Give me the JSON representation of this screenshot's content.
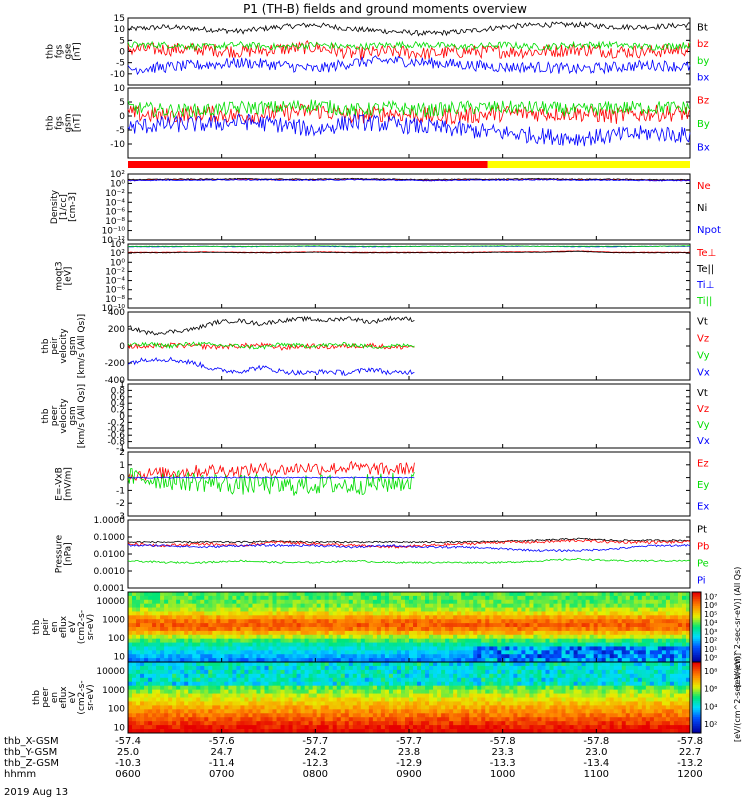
{
  "title": "P1 (TH-B) fields and ground moments overview",
  "date_label": "2019 Aug 13",
  "colors": {
    "black": "#000000",
    "red": "#ff0000",
    "green": "#00dd00",
    "blue": "#0000ff",
    "yellow": "#ffff00"
  },
  "chart_data": [
    {
      "type": "line",
      "id": "fgs_gse",
      "ylabel_lines": [
        "thb",
        "fgs",
        "gse",
        "[nT]"
      ],
      "ylim": [
        -15,
        15
      ],
      "yticks": [
        15,
        10,
        5,
        0,
        -5,
        -10
      ],
      "series": [
        {
          "name": "Bt",
          "color": "#000000",
          "base": [
            10,
            11,
            10,
            9,
            11,
            12,
            10,
            9,
            8,
            9,
            11,
            12,
            12,
            11,
            11,
            12
          ],
          "noise": 1.2
        },
        {
          "name": "bz",
          "color": "#ff0000",
          "base": [
            1,
            1,
            1,
            0,
            1,
            2,
            -1,
            0,
            -1,
            0,
            0,
            0,
            1,
            0,
            0,
            1
          ],
          "noise": 3
        },
        {
          "name": "by",
          "color": "#00dd00",
          "base": [
            3,
            3,
            2,
            3,
            2,
            3,
            2,
            3,
            3,
            2,
            3,
            2,
            3,
            3,
            2,
            3
          ],
          "noise": 1.5
        },
        {
          "name": "bx",
          "color": "#0000ff",
          "base": [
            -8,
            -7,
            -6,
            -5,
            -6,
            -8,
            -5,
            -4,
            -5,
            -6,
            -7,
            -7,
            -8,
            -7,
            -6,
            -7
          ],
          "noise": 2.5
        }
      ]
    },
    {
      "type": "line",
      "id": "fgs_gsm",
      "ylabel_lines": [
        "thb",
        "fgs",
        "gsm",
        "[nT]"
      ],
      "ylim": [
        -15,
        10
      ],
      "yticks": [
        10,
        5,
        0,
        -5,
        -10
      ],
      "series": [
        {
          "name": "Bz",
          "color": "#ff0000",
          "base": [
            1,
            0,
            1,
            0,
            1,
            2,
            0,
            1,
            0,
            0,
            1,
            1,
            1,
            0,
            1,
            1
          ],
          "noise": 3
        },
        {
          "name": "By",
          "color": "#00dd00",
          "base": [
            3,
            2,
            2,
            3,
            3,
            4,
            2,
            3,
            2,
            3,
            3,
            3,
            2,
            3,
            3,
            3
          ],
          "noise": 2.5
        },
        {
          "name": "Bx",
          "color": "#0000ff",
          "base": [
            -4,
            -3,
            -3,
            -2,
            -3,
            -5,
            -2,
            -3,
            -4,
            -5,
            -6,
            -7,
            -8,
            -7,
            -6,
            -7
          ],
          "noise": 3
        }
      ]
    },
    {
      "type": "line",
      "id": "density",
      "log": true,
      "ylabel_lines": [
        "Density",
        "[1/cc]",
        "[cm-3]"
      ],
      "ylim": [
        1e-12,
        100
      ],
      "yticks_labels": [
        "10²",
        "10⁰",
        "10⁻²",
        "10⁻⁴",
        "10⁻⁶",
        "10⁻⁸",
        "10⁻¹⁰",
        "10⁻¹²"
      ],
      "yticks_exp": [
        2,
        0,
        -2,
        -4,
        -6,
        -8,
        -10,
        -12
      ],
      "series": [
        {
          "name": "Ne",
          "color": "#ff0000",
          "base": [
            0.7,
            0.8,
            0.8,
            0.9,
            0.8,
            0.8,
            0.9,
            0.8,
            0.7,
            0.8,
            0.8,
            0.9,
            0.8,
            0.8,
            0.7,
            0.7
          ],
          "noise": 0.1
        },
        {
          "name": "Ni",
          "color": "#000000",
          "base": [
            0.8,
            0.9,
            0.9,
            1,
            0.9,
            0.9,
            1,
            0.9,
            0.8,
            0.9,
            0.9,
            1,
            0.9,
            0.9,
            0.8,
            0.8
          ],
          "noise": 0.1
        },
        {
          "name": "Npot",
          "color": "#0000ff",
          "base": [
            0.6,
            0.7,
            0.7,
            0.8,
            0.7,
            0.7,
            0.8,
            0.7,
            0.6,
            0.7,
            0.7,
            0.8,
            0.7,
            0.7,
            0.6,
            0.6
          ],
          "noise": 0.1
        }
      ]
    },
    {
      "type": "line",
      "id": "temperature",
      "log": true,
      "ylabel_lines": [
        "moqt3",
        "[eV]"
      ],
      "ylim": [
        1e-10,
        10000
      ],
      "yticks_labels": [
        "10⁴",
        "10²",
        "10⁰",
        "10⁻²",
        "10⁻⁴",
        "10⁻⁶",
        "10⁻⁸",
        "10⁻¹⁰"
      ],
      "yticks_exp": [
        4,
        2,
        0,
        -2,
        -4,
        -6,
        -8,
        -10
      ],
      "series": [
        {
          "name": "Te⊥",
          "color": "#ff0000",
          "base": [
            2.2,
            2.2,
            2.3,
            2.2,
            2.2,
            2.3,
            2.2,
            2.2,
            2.2,
            2.2,
            2.3,
            2.3,
            2.5,
            2.2,
            2.2,
            2.2
          ],
          "noise": 0.05
        },
        {
          "name": "Te||",
          "color": "#000000",
          "base": [
            2.1,
            2.1,
            2.2,
            2.1,
            2.1,
            2.2,
            2.1,
            2.1,
            2.1,
            2.1,
            2.2,
            2.2,
            2.4,
            2.1,
            2.1,
            2.1
          ],
          "noise": 0.05
        },
        {
          "name": "Ti⊥",
          "color": "#0000ff",
          "base": [
            3.4,
            3.4,
            3.5,
            3.4,
            3.5,
            3.5,
            3.4,
            3.4,
            3.5,
            3.5,
            3.5,
            3.5,
            3.4,
            3.4,
            3.5,
            3.5
          ],
          "noise": 0.05
        },
        {
          "name": "Ti||",
          "color": "#00dd00",
          "base": [
            3.5,
            3.5,
            3.5,
            3.5,
            3.5,
            3.6,
            3.5,
            3.5,
            3.5,
            3.5,
            3.6,
            3.5,
            3.5,
            3.5,
            3.5,
            3.6
          ],
          "noise": 0.05
        }
      ]
    },
    {
      "type": "line",
      "id": "peir_velocity",
      "xmax": 0.51,
      "ylabel_lines": [
        "thb",
        "peir",
        "velocity",
        "gsm",
        "[km/s (All Qs)]"
      ],
      "ylim": [
        -400,
        400
      ],
      "yticks": [
        400,
        200,
        0,
        -200,
        -400
      ],
      "series": [
        {
          "name": "Vt",
          "color": "#000000",
          "base": [
            220,
            150,
            170,
            200,
            280,
            300,
            260,
            300,
            320,
            300,
            330,
            280,
            330,
            310
          ],
          "noise": 25
        },
        {
          "name": "Vz",
          "color": "#ff0000",
          "base": [
            0,
            -10,
            10,
            0,
            -10,
            0,
            10,
            -20,
            0,
            -10,
            0,
            10,
            -20,
            0
          ],
          "noise": 30
        },
        {
          "name": "Vy",
          "color": "#00dd00",
          "base": [
            10,
            20,
            0,
            30,
            10,
            0,
            -20,
            20,
            0,
            10,
            20,
            -10,
            0,
            10
          ],
          "noise": 25
        },
        {
          "name": "Vx",
          "color": "#0000ff",
          "base": [
            -200,
            -150,
            -160,
            -200,
            -280,
            -300,
            -250,
            -300,
            -320,
            -300,
            -320,
            -270,
            -320,
            -300
          ],
          "noise": 30
        }
      ]
    },
    {
      "type": "line",
      "id": "peer_velocity",
      "empty": true,
      "ylabel_lines": [
        "thb",
        "peer",
        "velocity",
        "gsm",
        "[km/s (All Qs)]"
      ],
      "ylim": [
        -1,
        1
      ],
      "yticks": [
        1.0,
        0.8,
        0.6,
        0.4,
        0.2,
        0.0,
        -0.2,
        -0.4,
        -0.6,
        -0.8,
        -1.0
      ],
      "series": [
        {
          "name": "Vt",
          "color": "#000000",
          "base": [],
          "noise": 0
        },
        {
          "name": "Vz",
          "color": "#ff0000",
          "base": [],
          "noise": 0
        },
        {
          "name": "Vy",
          "color": "#00dd00",
          "base": [],
          "noise": 0
        },
        {
          "name": "Vx",
          "color": "#0000ff",
          "base": [],
          "noise": 0
        }
      ]
    },
    {
      "type": "line",
      "id": "efield",
      "xmax": 0.51,
      "ylabel_lines": [
        "E=-VxB",
        "[mV/m]"
      ],
      "ylim": [
        -3,
        2
      ],
      "yticks": [
        2,
        1,
        0,
        -1,
        -2,
        -3
      ],
      "series": [
        {
          "name": "Ez",
          "color": "#ff0000",
          "base": [
            0.2,
            0.3,
            0.4,
            0.5,
            0.6,
            0.5,
            0.7,
            0.6,
            0.8,
            0.7,
            0.8,
            0.7,
            0.6,
            0.8
          ],
          "noise": 0.5
        },
        {
          "name": "Ey",
          "color": "#00dd00",
          "base": [
            0,
            -0.1,
            -0.2,
            -0.3,
            -0.4,
            -0.6,
            -0.5,
            -0.7,
            -0.6,
            -0.5,
            -0.6,
            -0.5,
            -0.4,
            -0.3
          ],
          "noise": 0.8
        },
        {
          "name": "Ex",
          "color": "#0000ff",
          "base": [
            0,
            0,
            0,
            0,
            0,
            0,
            0,
            0,
            0,
            0,
            0,
            0,
            0,
            0
          ],
          "noise": 0.05
        }
      ]
    },
    {
      "type": "line",
      "id": "pressure",
      "log": true,
      "ylabel_lines": [
        "Pressure",
        "[nPa]"
      ],
      "ylim": [
        0.0001,
        1
      ],
      "yticks_labels": [
        "1.0000",
        "0.1000",
        "0.0100",
        "0.0010",
        "0.0001"
      ],
      "yticks_exp": [
        0,
        -1,
        -2,
        -3,
        -4
      ],
      "series": [
        {
          "name": "Pt",
          "color": "#000000",
          "base": [
            -1.3,
            -1.3,
            -1.3,
            -1.3,
            -1.25,
            -1.3,
            -1.3,
            -1.3,
            -1.3,
            -1.3,
            -1.25,
            -1.2,
            -1.1,
            -1.2,
            -1.2,
            -1.2
          ],
          "noise": 0.05
        },
        {
          "name": "Pb",
          "color": "#ff0000",
          "base": [
            -1.4,
            -1.5,
            -1.4,
            -1.5,
            -1.3,
            -1.4,
            -1.5,
            -1.6,
            -1.5,
            -1.4,
            -1.3,
            -1.3,
            -1.2,
            -1.3,
            -1.3,
            -1.3
          ],
          "noise": 0.08
        },
        {
          "name": "Pe",
          "color": "#00dd00",
          "base": [
            -2.4,
            -2.5,
            -2.5,
            -2.4,
            -2.5,
            -2.5,
            -2.4,
            -2.5,
            -2.5,
            -2.5,
            -2.5,
            -2.4,
            -2.3,
            -2.4,
            -2.4,
            -2.4
          ],
          "noise": 0.05
        },
        {
          "name": "Pi",
          "color": "#0000ff",
          "base": [
            -1.5,
            -1.5,
            -1.6,
            -1.5,
            -1.5,
            -1.5,
            -1.6,
            -1.5,
            -1.6,
            -1.6,
            -1.7,
            -1.8,
            -1.8,
            -1.7,
            -1.5,
            -1.5
          ],
          "noise": 0.06
        }
      ]
    },
    {
      "type": "heatmap",
      "id": "peir_spec",
      "ylabel_lines": [
        "thb",
        "peir",
        "en",
        "eflux",
        "eV",
        "(cm2-s-",
        "sr-eV)"
      ],
      "ylim": [
        5,
        30000
      ],
      "yticks_labels": [
        "10000",
        "1000",
        "100",
        "10"
      ],
      "yticks_exp": [
        4,
        3,
        2,
        1
      ],
      "colorbar": {
        "label": "[eV/(cm^2-sec-sr-eV)] (All Qs)",
        "ticks": [
          "10⁷",
          "10⁶",
          "10⁵",
          "10⁴",
          "10³",
          "10²",
          "10¹",
          "10⁰"
        ]
      }
    },
    {
      "type": "heatmap",
      "id": "peer_spec",
      "ylabel_lines": [
        "thb",
        "peer",
        "en",
        "eflux",
        "eV",
        "(cm2-s-",
        "sr-eV)"
      ],
      "ylim": [
        5,
        30000
      ],
      "yticks_labels": [
        "10000",
        "1000",
        "100",
        "10"
      ],
      "yticks_exp": [
        4,
        3,
        2,
        1
      ],
      "colorbar": {
        "label": "[eV/(cm^2-sec-sr-eV)]",
        "ticks": [
          "10⁸",
          "10⁶",
          "10⁴",
          "10²"
        ]
      }
    }
  ],
  "x_axis": {
    "rows": [
      {
        "label": "thb_X-GSM",
        "values": [
          "-57.4",
          "-57.6",
          "-57.7",
          "-57.7",
          "-57.8",
          "-57.8",
          "-57.8"
        ]
      },
      {
        "label": "thb_Y-GSM",
        "values": [
          "25.0",
          "24.7",
          "24.2",
          "23.8",
          "23.3",
          "23.0",
          "22.7"
        ]
      },
      {
        "label": "thb_Z-GSM",
        "values": [
          "-10.3",
          "-11.4",
          "-12.3",
          "-12.9",
          "-13.3",
          "-13.4",
          "-13.2"
        ]
      },
      {
        "label": "hhmm",
        "values": [
          "0600",
          "0700",
          "0800",
          "0900",
          "1000",
          "1100",
          "1200"
        ]
      }
    ]
  }
}
